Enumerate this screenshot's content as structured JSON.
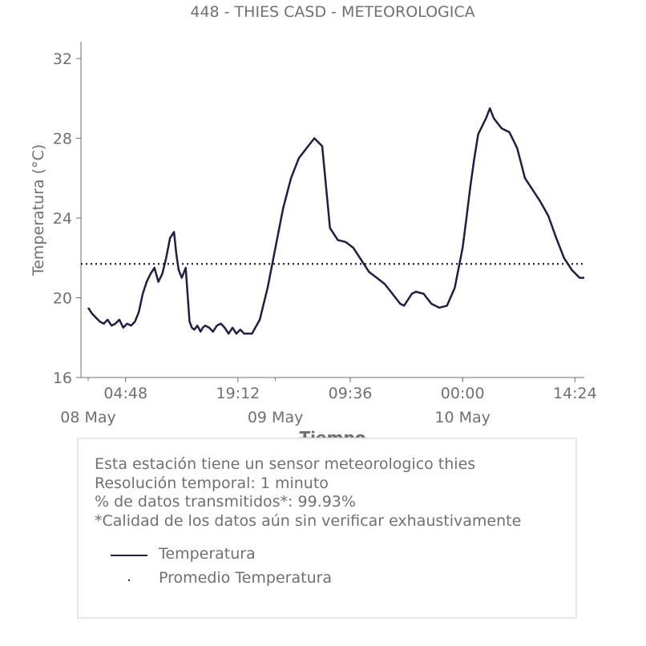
{
  "chart_data": {
    "type": "line",
    "title": "448 - THIES CASD - METEOROLOGICA",
    "xlabel": "Tiempo",
    "ylabel": "Temperatura (°C)",
    "ylim": [
      16,
      33
    ],
    "yticks": [
      "16",
      "20",
      "24",
      "28",
      "32"
    ],
    "x_range_hours": [
      0,
      63.6
    ],
    "time_ticks": [
      {
        "label": "04:48",
        "hours": 4.8
      },
      {
        "label": "19:12",
        "hours": 19.2
      },
      {
        "label": "09:36",
        "hours": 33.6
      },
      {
        "label": "00:00",
        "hours": 48.0
      },
      {
        "label": "14:24",
        "hours": 62.4
      }
    ],
    "minor_ticks_hours": [
      0,
      24,
      48
    ],
    "date_labels": [
      {
        "label": "08 May",
        "hours": 0
      },
      {
        "label": "09 May",
        "hours": 24
      },
      {
        "label": "10 May",
        "hours": 48
      }
    ],
    "series": [
      {
        "name": "Temperatura",
        "color": "#1f1f45",
        "x": [
          0,
          0.5,
          1,
          1.5,
          2,
          2.5,
          3,
          3.5,
          4,
          4.5,
          5,
          5.5,
          6,
          6.5,
          7,
          7.5,
          8,
          8.5,
          9,
          9.5,
          10,
          10.5,
          11,
          11.3,
          11.6,
          12,
          12.5,
          13,
          13.3,
          13.6,
          14,
          14.4,
          14.7,
          15,
          15.5,
          16,
          16.5,
          17,
          17.5,
          18,
          18.5,
          19,
          19.5,
          20,
          21,
          22,
          23,
          24,
          25,
          26,
          27,
          28,
          29,
          30,
          31,
          32,
          33,
          34,
          35,
          36,
          37,
          38,
          39,
          40,
          40.5,
          41,
          41.5,
          42,
          43,
          44,
          45,
          46,
          47,
          48,
          48.5,
          49,
          49.5,
          50,
          51,
          51.5,
          52,
          53,
          54,
          55,
          56,
          57,
          58,
          59,
          60,
          61,
          62,
          63,
          63.6
        ],
        "values": [
          19.5,
          19.2,
          19.0,
          18.8,
          18.7,
          18.9,
          18.6,
          18.7,
          18.9,
          18.5,
          18.7,
          18.6,
          18.8,
          19.3,
          20.2,
          20.8,
          21.2,
          21.5,
          20.8,
          21.2,
          22.0,
          23.0,
          23.3,
          22.2,
          21.4,
          21.0,
          21.5,
          18.8,
          18.5,
          18.4,
          18.6,
          18.3,
          18.5,
          18.6,
          18.5,
          18.3,
          18.6,
          18.7,
          18.5,
          18.2,
          18.5,
          18.2,
          18.4,
          18.2,
          18.2,
          18.9,
          20.5,
          22.5,
          24.5,
          26.0,
          27.0,
          27.5,
          28.0,
          27.6,
          23.5,
          22.9,
          22.8,
          22.5,
          21.9,
          21.3,
          21.0,
          20.7,
          20.2,
          19.7,
          19.6,
          19.9,
          20.2,
          20.3,
          20.2,
          19.7,
          19.5,
          19.6,
          20.5,
          22.5,
          24.0,
          25.6,
          27.0,
          28.2,
          29.0,
          29.5,
          29.0,
          28.5,
          28.3,
          27.5,
          26.0,
          25.4,
          24.8,
          24.1,
          23.0,
          22.0,
          21.4,
          21.0,
          21.0
        ],
        "line_style": "solid"
      },
      {
        "name": "Promedio Temperatura",
        "color": "#1f1f45",
        "values": [
          21.7
        ],
        "line_style": "dotted"
      }
    ],
    "grid": false,
    "legend_placement": "below chart"
  },
  "info": {
    "lines": [
      "Esta estación tiene un sensor meteorologico thies",
      "Resolución temporal: 1 minuto",
      "% de datos transmitidos*: 99.93%",
      "*Calidad de los datos aún sin verificar exhaustivamente"
    ]
  },
  "legend": {
    "items": [
      {
        "label": "Temperatura"
      },
      {
        "label": "Promedio Temperatura"
      }
    ]
  }
}
